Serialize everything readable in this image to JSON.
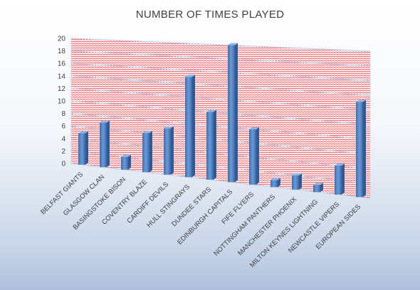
{
  "chart_data": {
    "type": "bar",
    "title": "NUMBER OF TIMES PLAYED",
    "categories": [
      "BELFAST GIANTS",
      "GLASGOW CLAN",
      "BASINGSTOKE BISON",
      "COVENTRY BLAZE",
      "CARDIFF DEVILS",
      "HULL STINGRAYS",
      "DUNDEE STARS",
      "EDINBURGH CAPITALS",
      "FIFE FLYERS",
      "NOTTINGHAM PANTHERS",
      "MANCHESTER PHOENIX",
      "MILTON KEYNES LIGHTNING",
      "NEWCASTLE VIPERS",
      "EUROPEAN SIDES"
    ],
    "values": [
      5,
      7,
      2,
      6,
      7,
      15,
      10,
      20,
      8,
      1,
      2,
      1,
      4,
      13
    ],
    "yticks": [
      "0",
      "2",
      "4",
      "6",
      "8",
      "10",
      "12",
      "14",
      "16",
      "18",
      "20"
    ],
    "ylim": [
      0,
      20
    ],
    "xlabel": "",
    "ylabel": "",
    "grid": true,
    "legend": "none",
    "colors": {
      "bar": "#4f81bd",
      "gridline": "#e8262c",
      "grid_fill": "#ffffff"
    }
  }
}
